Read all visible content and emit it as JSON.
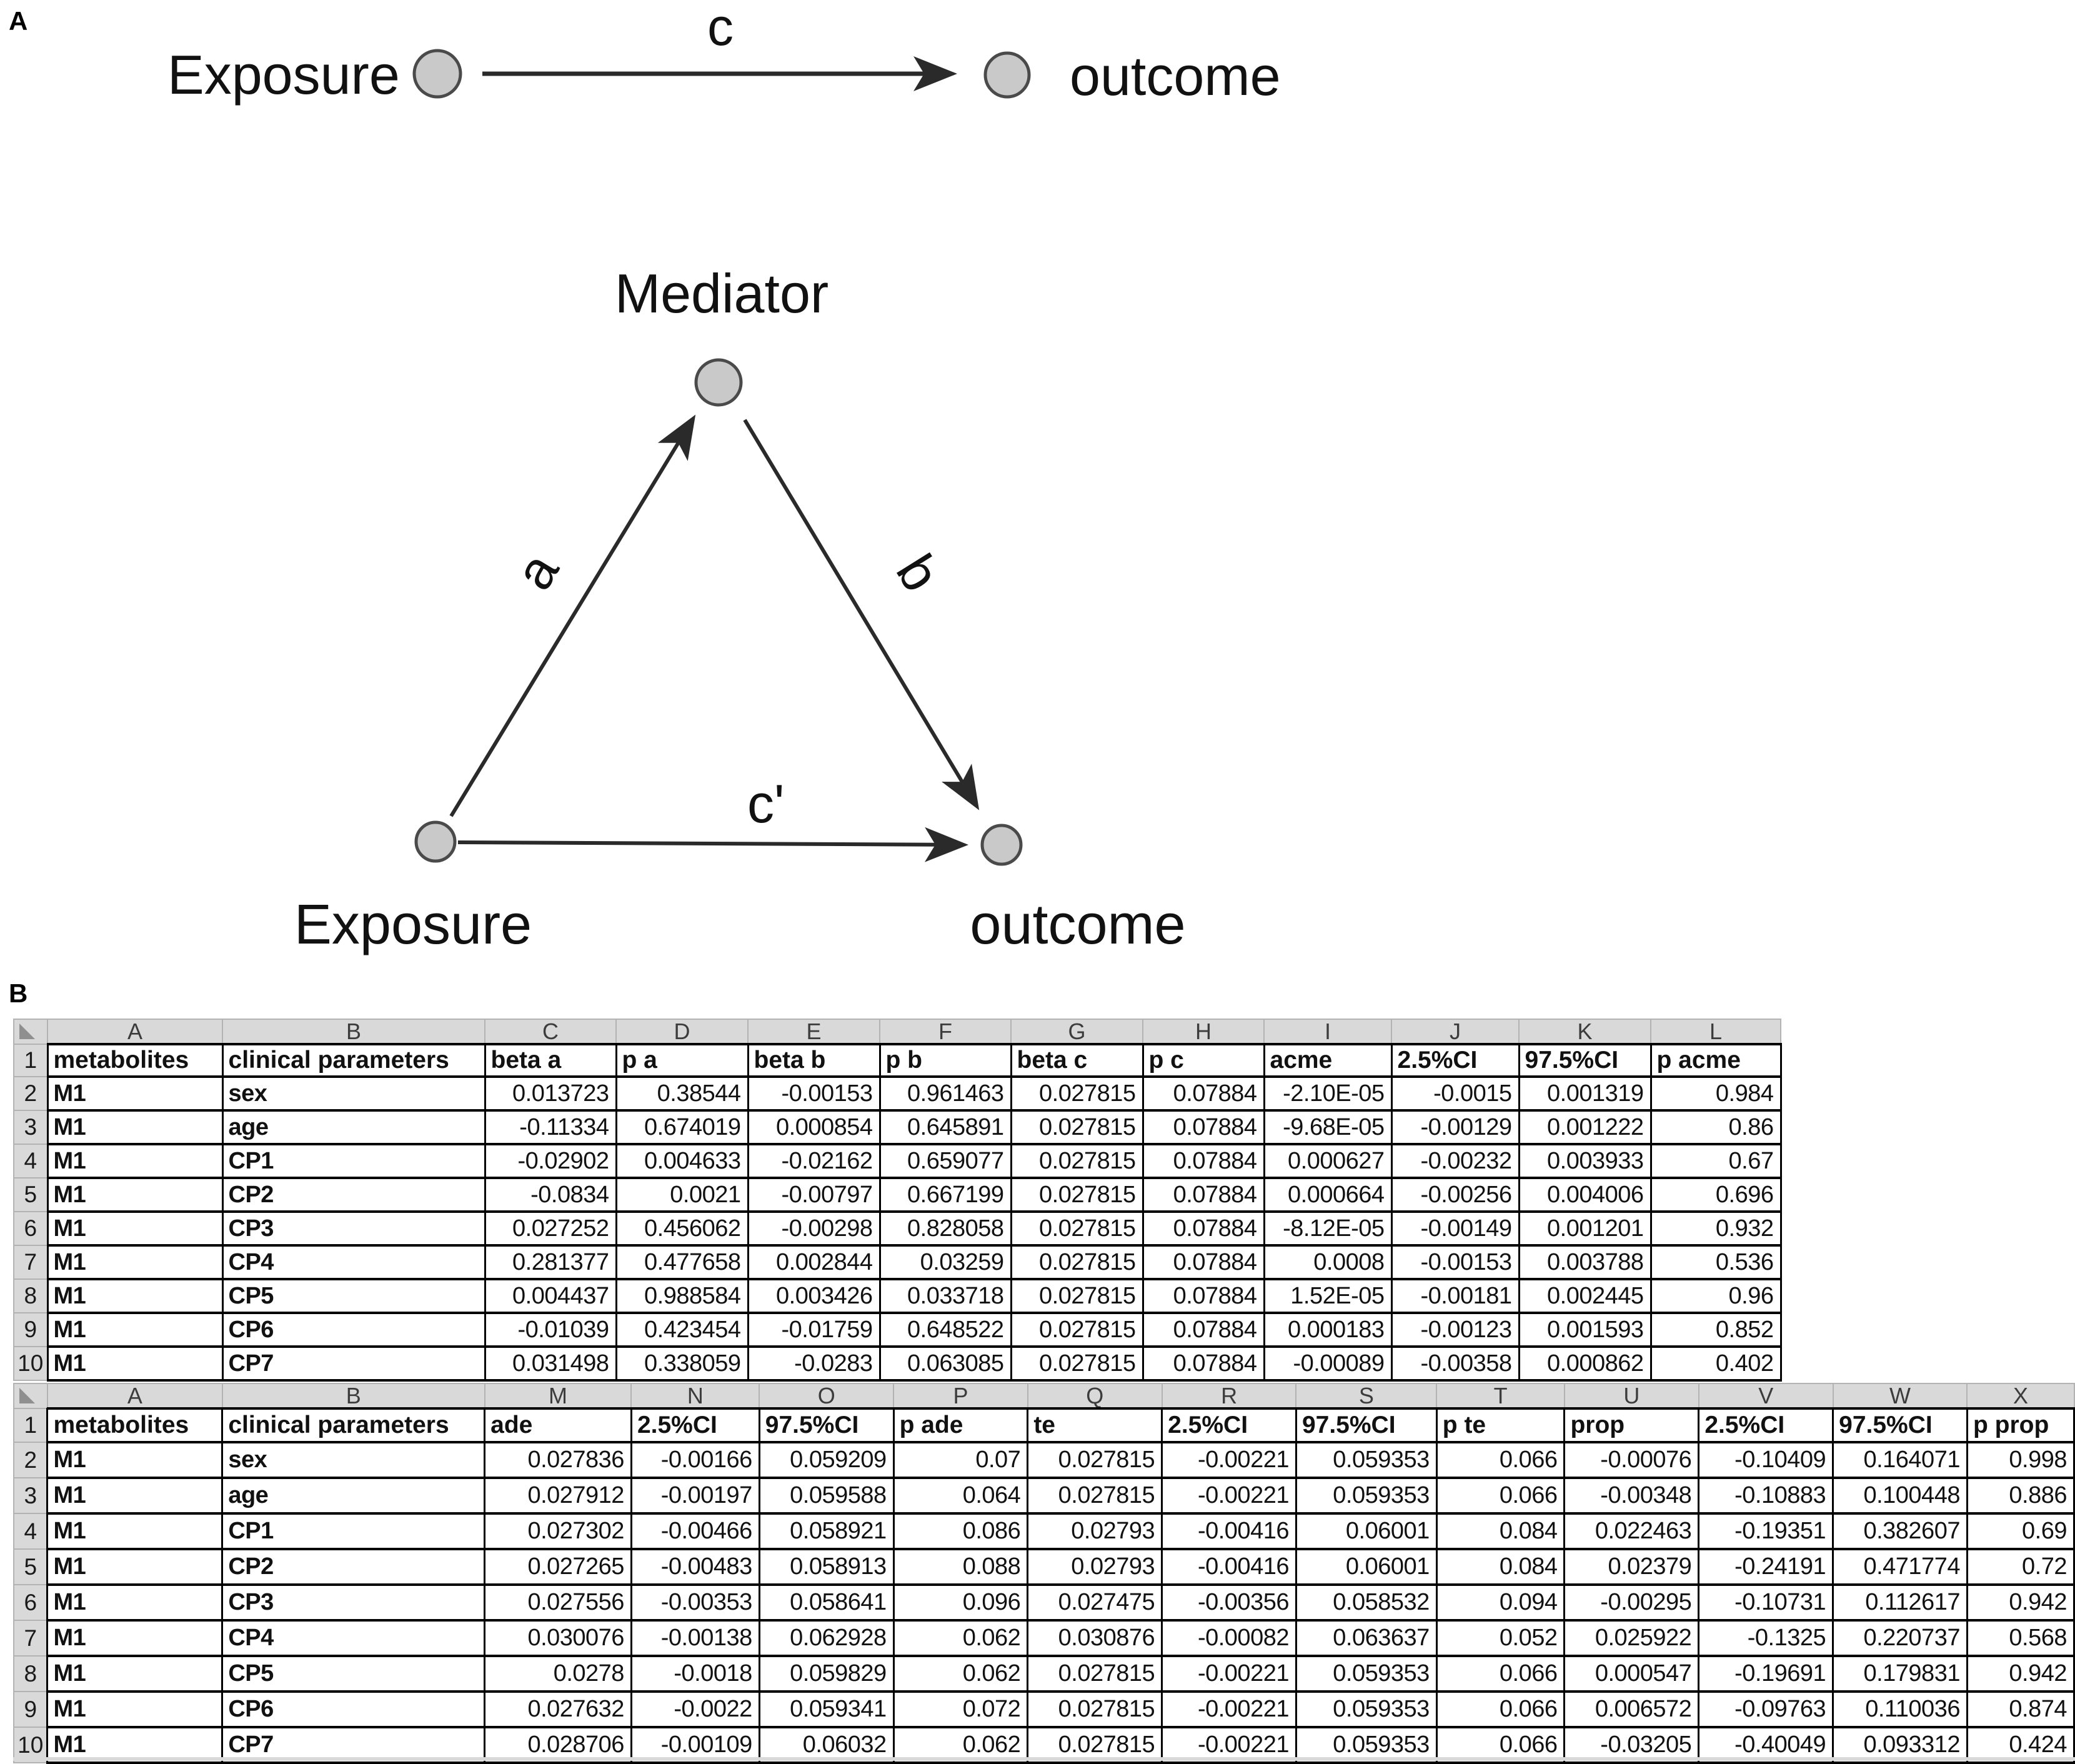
{
  "colors": {
    "node_fill": "#c9c9c9",
    "node_stroke": "#4a4a4a",
    "edge": "#2a2a2a",
    "grid_header_bg": "#d9d9d9",
    "grid_border": "#000000",
    "text": "#111111"
  },
  "panel_a": {
    "label": "A",
    "top_diagram": {
      "exposure_label": "Exposure",
      "outcome_label": "outcome",
      "edge_label": "c"
    },
    "triangle_diagram": {
      "mediator_label": "Mediator",
      "exposure_label": "Exposure",
      "outcome_label": "outcome",
      "edge_a_label": "a",
      "edge_b_label": "b",
      "edge_c_prime_label": "c'"
    }
  },
  "panel_b": {
    "label": "B",
    "tables": [
      {
        "col_letters": [
          "A",
          "B",
          "C",
          "D",
          "E",
          "F",
          "G",
          "H",
          "I",
          "J",
          "K",
          "L"
        ],
        "row_numbers": [
          "1",
          "2",
          "3",
          "4",
          "5",
          "6",
          "7",
          "8",
          "9",
          "10"
        ],
        "headers": [
          "metabolites",
          "clinical parameters",
          "beta a",
          "p a",
          "beta b",
          "p b",
          "beta c",
          "p c",
          "acme",
          "2.5%CI",
          "97.5%CI",
          "p acme"
        ],
        "rows": [
          [
            "M1",
            "sex",
            "0.013723",
            "0.38544",
            "-0.00153",
            "0.961463",
            "0.027815",
            "0.07884",
            "-2.10E-05",
            "-0.0015",
            "0.001319",
            "0.984"
          ],
          [
            "M1",
            "age",
            "-0.11334",
            "0.674019",
            "0.000854",
            "0.645891",
            "0.027815",
            "0.07884",
            "-9.68E-05",
            "-0.00129",
            "0.001222",
            "0.86"
          ],
          [
            "M1",
            "CP1",
            "-0.02902",
            "0.004633",
            "-0.02162",
            "0.659077",
            "0.027815",
            "0.07884",
            "0.000627",
            "-0.00232",
            "0.003933",
            "0.67"
          ],
          [
            "M1",
            "CP2",
            "-0.0834",
            "0.0021",
            "-0.00797",
            "0.667199",
            "0.027815",
            "0.07884",
            "0.000664",
            "-0.00256",
            "0.004006",
            "0.696"
          ],
          [
            "M1",
            "CP3",
            "0.027252",
            "0.456062",
            "-0.00298",
            "0.828058",
            "0.027815",
            "0.07884",
            "-8.12E-05",
            "-0.00149",
            "0.001201",
            "0.932"
          ],
          [
            "M1",
            "CP4",
            "0.281377",
            "0.477658",
            "0.002844",
            "0.03259",
            "0.027815",
            "0.07884",
            "0.0008",
            "-0.00153",
            "0.003788",
            "0.536"
          ],
          [
            "M1",
            "CP5",
            "0.004437",
            "0.988584",
            "0.003426",
            "0.033718",
            "0.027815",
            "0.07884",
            "1.52E-05",
            "-0.00181",
            "0.002445",
            "0.96"
          ],
          [
            "M1",
            "CP6",
            "-0.01039",
            "0.423454",
            "-0.01759",
            "0.648522",
            "0.027815",
            "0.07884",
            "0.000183",
            "-0.00123",
            "0.001593",
            "0.852"
          ],
          [
            "M1",
            "CP7",
            "0.031498",
            "0.338059",
            "-0.0283",
            "0.063085",
            "0.027815",
            "0.07884",
            "-0.00089",
            "-0.00358",
            "0.000862",
            "0.402"
          ]
        ]
      },
      {
        "col_letters": [
          "A",
          "B",
          "M",
          "N",
          "O",
          "P",
          "Q",
          "R",
          "S",
          "T",
          "U",
          "V",
          "W",
          "X"
        ],
        "row_numbers": [
          "1",
          "2",
          "3",
          "4",
          "5",
          "6",
          "7",
          "8",
          "9",
          "10"
        ],
        "headers": [
          "metabolites",
          "clinical parameters",
          "ade",
          "2.5%CI",
          "97.5%CI",
          "p ade",
          "te",
          "2.5%CI",
          "97.5%CI",
          "p te",
          "prop",
          "2.5%CI",
          "97.5%CI",
          "p prop"
        ],
        "rows": [
          [
            "M1",
            "sex",
            "0.027836",
            "-0.00166",
            "0.059209",
            "0.07",
            "0.027815",
            "-0.00221",
            "0.059353",
            "0.066",
            "-0.00076",
            "-0.10409",
            "0.164071",
            "0.998"
          ],
          [
            "M1",
            "age",
            "0.027912",
            "-0.00197",
            "0.059588",
            "0.064",
            "0.027815",
            "-0.00221",
            "0.059353",
            "0.066",
            "-0.00348",
            "-0.10883",
            "0.100448",
            "0.886"
          ],
          [
            "M1",
            "CP1",
            "0.027302",
            "-0.00466",
            "0.058921",
            "0.086",
            "0.02793",
            "-0.00416",
            "0.06001",
            "0.084",
            "0.022463",
            "-0.19351",
            "0.382607",
            "0.69"
          ],
          [
            "M1",
            "CP2",
            "0.027265",
            "-0.00483",
            "0.058913",
            "0.088",
            "0.02793",
            "-0.00416",
            "0.06001",
            "0.084",
            "0.02379",
            "-0.24191",
            "0.471774",
            "0.72"
          ],
          [
            "M1",
            "CP3",
            "0.027556",
            "-0.00353",
            "0.058641",
            "0.096",
            "0.027475",
            "-0.00356",
            "0.058532",
            "0.094",
            "-0.00295",
            "-0.10731",
            "0.112617",
            "0.942"
          ],
          [
            "M1",
            "CP4",
            "0.030076",
            "-0.00138",
            "0.062928",
            "0.062",
            "0.030876",
            "-0.00082",
            "0.063637",
            "0.052",
            "0.025922",
            "-0.1325",
            "0.220737",
            "0.568"
          ],
          [
            "M1",
            "CP5",
            "0.0278",
            "-0.0018",
            "0.059829",
            "0.062",
            "0.027815",
            "-0.00221",
            "0.059353",
            "0.066",
            "0.000547",
            "-0.19691",
            "0.179831",
            "0.942"
          ],
          [
            "M1",
            "CP6",
            "0.027632",
            "-0.0022",
            "0.059341",
            "0.072",
            "0.027815",
            "-0.00221",
            "0.059353",
            "0.066",
            "0.006572",
            "-0.09763",
            "0.110036",
            "0.874"
          ],
          [
            "M1",
            "CP7",
            "0.028706",
            "-0.00109",
            "0.06032",
            "0.062",
            "0.027815",
            "-0.00221",
            "0.059353",
            "0.066",
            "-0.03205",
            "-0.40049",
            "0.093312",
            "0.424"
          ]
        ]
      }
    ]
  }
}
